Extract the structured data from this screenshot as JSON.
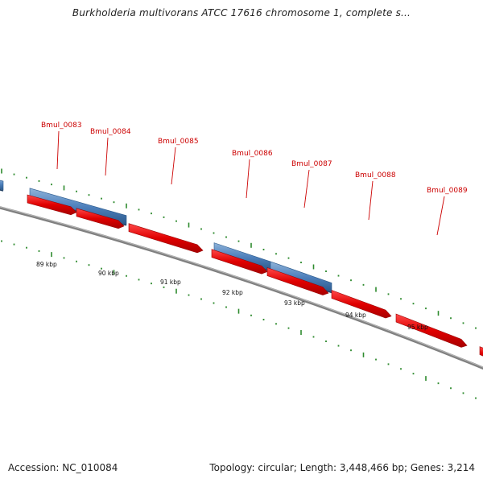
{
  "title": "Burkholderia multivorans ATCC 17616 chromosome 1, complete s...",
  "footer": {
    "accession": "Accession: NC_010084",
    "summary": "Topology: circular; Length: 3,448,466 bp; Genes: 3,214"
  },
  "colors": {
    "forward_gene": "#dd0000",
    "feature_block": "#4f81bd",
    "backbone": "#808080",
    "tick": "#2e8b2e",
    "gene_label": "#cc0000"
  },
  "gene_labels": [
    "Bmul_0083",
    "Bmul_0084",
    "Bmul_0085",
    "Bmul_0086",
    "Bmul_0087",
    "Bmul_0088",
    "Bmul_0089"
  ],
  "kbp_labels": [
    "89 kbp",
    "90 kbp",
    "91 kbp",
    "92 kbp",
    "93 kbp",
    "94 kbp",
    "95 kbp"
  ]
}
